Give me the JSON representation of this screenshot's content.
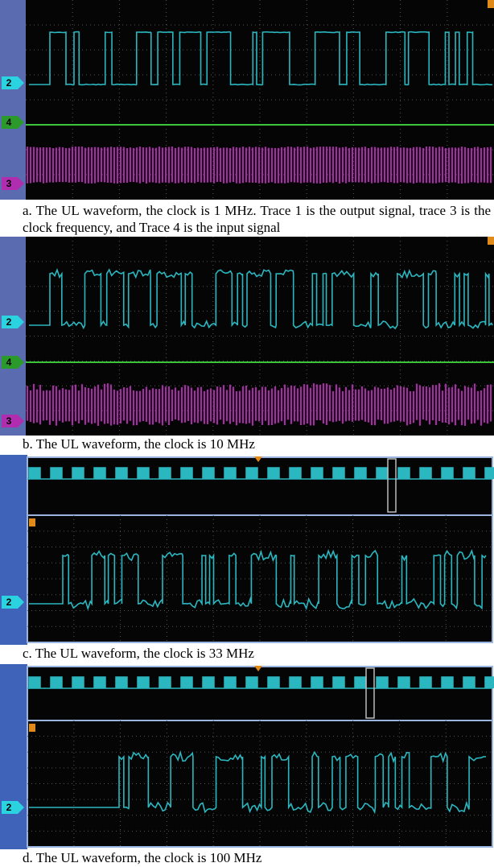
{
  "panels": [
    {
      "caption": "a. The UL waveform, the clock is 1 MHz. Trace 1 is the output signal, trace 3 is the clock frequency, and Trace 4 is the input signal",
      "markers": [
        "2",
        "4",
        "3"
      ]
    },
    {
      "caption": "b. The UL waveform, the clock is 10 MHz",
      "markers": [
        "2",
        "4",
        "3"
      ]
    },
    {
      "caption": "c. The UL waveform, the clock is 33 MHz",
      "markers": [
        "2"
      ]
    },
    {
      "caption": "d. The UL waveform, the clock is 100 MHz",
      "markers": [
        "2"
      ]
    }
  ]
}
